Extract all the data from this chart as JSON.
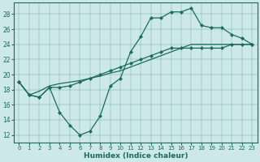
{
  "xlabel": "Humidex (Indice chaleur)",
  "bg_color": "#cce8e8",
  "line_color": "#1a6b5e",
  "xlim": [
    -0.5,
    23.5
  ],
  "ylim": [
    11,
    29.5
  ],
  "xticks": [
    0,
    1,
    2,
    3,
    4,
    5,
    6,
    7,
    8,
    9,
    10,
    11,
    12,
    13,
    14,
    15,
    16,
    17,
    18,
    19,
    20,
    21,
    22,
    23
  ],
  "yticks": [
    12,
    14,
    16,
    18,
    20,
    22,
    24,
    26,
    28
  ],
  "line1_x": [
    0,
    1,
    2,
    3,
    4,
    5,
    6,
    7,
    8,
    9,
    10,
    11,
    12,
    13,
    14,
    15,
    16,
    17,
    18,
    19,
    20,
    21,
    22,
    23
  ],
  "line1_y": [
    19.0,
    17.3,
    17.0,
    18.3,
    15.0,
    13.3,
    12.0,
    12.5,
    14.5,
    18.5,
    19.5,
    23.0,
    25.0,
    27.5,
    27.5,
    28.3,
    28.3,
    28.8,
    26.5,
    26.2,
    26.2,
    25.3,
    24.8,
    24.0
  ],
  "line2_x": [
    0,
    1,
    2,
    3,
    4,
    5,
    6,
    7,
    8,
    9,
    10,
    11,
    12,
    13,
    14,
    15,
    16,
    17,
    18,
    19,
    20,
    21,
    22,
    23
  ],
  "line2_y": [
    19.0,
    17.3,
    17.8,
    18.5,
    18.8,
    19.0,
    19.2,
    19.5,
    19.8,
    20.2,
    20.5,
    21.0,
    21.5,
    22.0,
    22.5,
    23.0,
    23.5,
    24.0,
    24.0,
    24.0,
    24.0,
    24.0,
    24.0,
    24.0
  ],
  "line3_x": [
    0,
    1,
    2,
    3,
    4,
    5,
    6,
    7,
    8,
    9,
    10,
    11,
    12,
    13,
    14,
    15,
    16,
    17,
    18,
    19,
    20,
    21,
    22,
    23
  ],
  "line3_y": [
    19.0,
    17.3,
    17.0,
    18.3,
    18.3,
    18.5,
    19.0,
    19.5,
    20.0,
    20.5,
    21.0,
    21.5,
    22.0,
    22.5,
    23.0,
    23.5,
    23.5,
    23.5,
    23.5,
    23.5,
    23.5,
    24.0,
    24.0,
    24.0
  ]
}
